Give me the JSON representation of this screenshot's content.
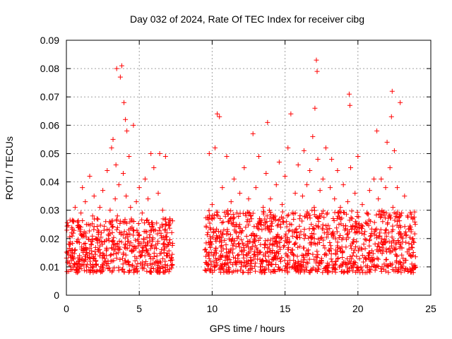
{
  "chart_data": {
    "type": "scatter",
    "title": "Day 032 of 2024, Rate Of TEC Index for receiver cibg",
    "xlabel": "GPS time / hours",
    "ylabel": "ROTI / TECUs",
    "xlim": [
      0,
      25
    ],
    "ylim": [
      0,
      0.09
    ],
    "xticks": [
      0,
      5,
      10,
      15,
      20,
      25
    ],
    "xtick_labels": [
      "0",
      "5",
      "10",
      "15",
      "20",
      "25"
    ],
    "yticks": [
      0,
      0.01,
      0.02,
      0.03,
      0.04,
      0.05,
      0.06,
      0.07,
      0.08,
      0.09
    ],
    "ytick_labels": [
      "0",
      "0.01",
      "0.02",
      "0.03",
      "0.04",
      "0.05",
      "0.06",
      "0.07",
      "0.08",
      "0.09"
    ],
    "grid": true,
    "marker": "+",
    "color": "#ff0000",
    "series": [
      {
        "name": "ROTI",
        "points": [
          [
            0.1,
            0.012
          ],
          [
            0.2,
            0.018
          ],
          [
            0.3,
            0.009
          ],
          [
            0.35,
            0.022
          ],
          [
            0.4,
            0.015
          ],
          [
            0.5,
            0.026
          ],
          [
            0.55,
            0.011
          ],
          [
            0.6,
            0.031
          ],
          [
            0.7,
            0.019
          ],
          [
            0.75,
            0.008
          ],
          [
            0.8,
            0.024
          ],
          [
            0.9,
            0.014
          ],
          [
            1.0,
            0.029
          ],
          [
            1.05,
            0.017
          ],
          [
            1.1,
            0.038
          ],
          [
            1.2,
            0.021
          ],
          [
            1.25,
            0.012
          ],
          [
            1.3,
            0.033
          ],
          [
            1.4,
            0.016
          ],
          [
            1.5,
            0.025
          ],
          [
            1.55,
            0.009
          ],
          [
            1.6,
            0.042
          ],
          [
            1.7,
            0.018
          ],
          [
            1.8,
            0.028
          ],
          [
            1.85,
            0.013
          ],
          [
            1.9,
            0.035
          ],
          [
            2.0,
            0.02
          ],
          [
            2.05,
            0.011
          ],
          [
            2.1,
            0.027
          ],
          [
            2.2,
            0.016
          ],
          [
            2.3,
            0.031
          ],
          [
            2.4,
            0.022
          ],
          [
            2.45,
            0.01
          ],
          [
            2.5,
            0.037
          ],
          [
            2.6,
            0.019
          ],
          [
            2.7,
            0.026
          ],
          [
            2.75,
            0.014
          ],
          [
            2.8,
            0.044
          ],
          [
            2.9,
            0.021
          ],
          [
            3.0,
            0.03
          ],
          [
            3.05,
            0.012
          ],
          [
            3.1,
            0.052
          ],
          [
            3.15,
            0.024
          ],
          [
            3.2,
            0.055
          ],
          [
            3.3,
            0.018
          ],
          [
            3.35,
            0.034
          ],
          [
            3.4,
            0.046
          ],
          [
            3.45,
            0.08
          ],
          [
            3.5,
            0.028
          ],
          [
            3.55,
            0.015
          ],
          [
            3.6,
            0.039
          ],
          [
            3.7,
            0.077
          ],
          [
            3.75,
            0.022
          ],
          [
            3.8,
            0.081
          ],
          [
            3.85,
            0.013
          ],
          [
            3.9,
            0.043
          ],
          [
            3.95,
            0.068
          ],
          [
            4.0,
            0.026
          ],
          [
            4.05,
            0.062
          ],
          [
            4.1,
            0.035
          ],
          [
            4.15,
            0.058
          ],
          [
            4.2,
            0.019
          ],
          [
            4.3,
            0.049
          ],
          [
            4.4,
            0.031
          ],
          [
            4.5,
            0.024
          ],
          [
            4.6,
            0.06
          ],
          [
            4.7,
            0.017
          ],
          [
            4.8,
            0.033
          ],
          [
            4.9,
            0.022
          ],
          [
            5.0,
            0.038
          ],
          [
            5.1,
            0.014
          ],
          [
            5.2,
            0.029
          ],
          [
            5.3,
            0.02
          ],
          [
            5.4,
            0.041
          ],
          [
            5.5,
            0.016
          ],
          [
            5.6,
            0.034
          ],
          [
            5.7,
            0.025
          ],
          [
            5.8,
            0.05
          ],
          [
            5.9,
            0.019
          ],
          [
            6.0,
            0.045
          ],
          [
            6.1,
            0.023
          ],
          [
            6.2,
            0.012
          ],
          [
            6.3,
            0.036
          ],
          [
            6.4,
            0.05
          ],
          [
            6.5,
            0.021
          ],
          [
            6.6,
            0.03
          ],
          [
            6.7,
            0.015
          ],
          [
            6.8,
            0.049
          ],
          [
            6.9,
            0.022
          ],
          [
            7.0,
            0.018
          ],
          [
            7.1,
            0.027
          ],
          [
            7.2,
            0.013
          ],
          [
            9.5,
            0.016
          ],
          [
            9.6,
            0.024
          ],
          [
            9.7,
            0.011
          ],
          [
            9.8,
            0.05
          ],
          [
            9.9,
            0.019
          ],
          [
            10.0,
            0.032
          ],
          [
            10.1,
            0.014
          ],
          [
            10.2,
            0.052
          ],
          [
            10.3,
            0.021
          ],
          [
            10.35,
            0.064
          ],
          [
            10.4,
            0.028
          ],
          [
            10.5,
            0.063
          ],
          [
            10.6,
            0.017
          ],
          [
            10.7,
            0.038
          ],
          [
            10.8,
            0.023
          ],
          [
            10.9,
            0.011
          ],
          [
            11.0,
            0.049
          ],
          [
            11.1,
            0.026
          ],
          [
            11.2,
            0.015
          ],
          [
            11.3,
            0.033
          ],
          [
            11.4,
            0.02
          ],
          [
            11.5,
            0.041
          ],
          [
            11.6,
            0.012
          ],
          [
            11.7,
            0.029
          ],
          [
            11.8,
            0.018
          ],
          [
            11.9,
            0.036
          ],
          [
            12.0,
            0.022
          ],
          [
            12.1,
            0.008
          ],
          [
            12.2,
            0.045
          ],
          [
            12.3,
            0.024
          ],
          [
            12.4,
            0.014
          ],
          [
            12.5,
            0.034
          ],
          [
            12.6,
            0.019
          ],
          [
            12.7,
            0.027
          ],
          [
            12.8,
            0.057
          ],
          [
            12.9,
            0.021
          ],
          [
            13.0,
            0.038
          ],
          [
            13.1,
            0.016
          ],
          [
            13.2,
            0.049
          ],
          [
            13.3,
            0.025
          ],
          [
            13.4,
            0.012
          ],
          [
            13.5,
            0.031
          ],
          [
            13.6,
            0.018
          ],
          [
            13.7,
            0.043
          ],
          [
            13.8,
            0.061
          ],
          [
            13.9,
            0.023
          ],
          [
            14.0,
            0.034
          ],
          [
            14.1,
            0.015
          ],
          [
            14.2,
            0.028
          ],
          [
            14.3,
            0.02
          ],
          [
            14.4,
            0.039
          ],
          [
            14.5,
            0.013
          ],
          [
            14.6,
            0.047
          ],
          [
            14.7,
            0.024
          ],
          [
            14.8,
            0.032
          ],
          [
            14.9,
            0.017
          ],
          [
            15.0,
            0.042
          ],
          [
            15.1,
            0.026
          ],
          [
            15.2,
            0.052
          ],
          [
            15.3,
            0.019
          ],
          [
            15.4,
            0.064
          ],
          [
            15.5,
            0.029
          ],
          [
            15.6,
            0.014
          ],
          [
            15.7,
            0.036
          ],
          [
            15.8,
            0.022
          ],
          [
            15.9,
            0.046
          ],
          [
            16.0,
            0.027
          ],
          [
            16.1,
            0.012
          ],
          [
            16.2,
            0.035
          ],
          [
            16.3,
            0.051
          ],
          [
            16.4,
            0.021
          ],
          [
            16.5,
            0.039
          ],
          [
            16.6,
            0.016
          ],
          [
            16.7,
            0.044
          ],
          [
            16.8,
            0.025
          ],
          [
            16.9,
            0.056
          ],
          [
            17.0,
            0.031
          ],
          [
            17.05,
            0.066
          ],
          [
            17.1,
            0.018
          ],
          [
            17.15,
            0.083
          ],
          [
            17.2,
            0.079
          ],
          [
            17.25,
            0.048
          ],
          [
            17.3,
            0.024
          ],
          [
            17.4,
            0.037
          ],
          [
            17.5,
            0.013
          ],
          [
            17.6,
            0.041
          ],
          [
            17.7,
            0.022
          ],
          [
            17.8,
            0.052
          ],
          [
            17.9,
            0.029
          ],
          [
            18.0,
            0.016
          ],
          [
            18.1,
            0.038
          ],
          [
            18.2,
            0.048
          ],
          [
            18.3,
            0.021
          ],
          [
            18.4,
            0.034
          ],
          [
            18.5,
            0.012
          ],
          [
            18.6,
            0.044
          ],
          [
            18.7,
            0.025
          ],
          [
            18.8,
            0.031
          ],
          [
            18.9,
            0.017
          ],
          [
            19.0,
            0.039
          ],
          [
            19.1,
            0.023
          ],
          [
            19.2,
            0.011
          ],
          [
            19.3,
            0.033
          ],
          [
            19.4,
            0.071
          ],
          [
            19.45,
            0.067
          ],
          [
            19.5,
            0.045
          ],
          [
            19.6,
            0.027
          ],
          [
            19.7,
            0.015
          ],
          [
            19.8,
            0.036
          ],
          [
            19.9,
            0.019
          ],
          [
            20.0,
            0.049
          ],
          [
            20.1,
            0.024
          ],
          [
            20.2,
            0.01
          ],
          [
            20.3,
            0.032
          ],
          [
            20.4,
            0.018
          ],
          [
            20.5,
            0.008
          ],
          [
            20.6,
            0.029
          ],
          [
            20.7,
            0.014
          ],
          [
            20.8,
            0.037
          ],
          [
            20.9,
            0.021
          ],
          [
            21.0,
            0.012
          ],
          [
            21.1,
            0.041
          ],
          [
            21.2,
            0.023
          ],
          [
            21.3,
            0.058
          ],
          [
            21.4,
            0.034
          ],
          [
            21.5,
            0.016
          ],
          [
            21.6,
            0.041
          ],
          [
            21.7,
            0.026
          ],
          [
            21.8,
            0.011
          ],
          [
            21.9,
            0.038
          ],
          [
            22.0,
            0.054
          ],
          [
            22.1,
            0.022
          ],
          [
            22.2,
            0.045
          ],
          [
            22.3,
            0.063
          ],
          [
            22.35,
            0.072
          ],
          [
            22.4,
            0.031
          ],
          [
            22.5,
            0.051
          ],
          [
            22.6,
            0.018
          ],
          [
            22.7,
            0.038
          ],
          [
            22.8,
            0.024
          ],
          [
            22.9,
            0.068
          ],
          [
            23.0,
            0.029
          ],
          [
            23.1,
            0.013
          ],
          [
            23.2,
            0.035
          ],
          [
            23.3,
            0.021
          ],
          [
            23.4,
            0.028
          ],
          [
            23.5,
            0.016
          ],
          [
            23.6,
            0.024
          ],
          [
            23.7,
            0.011
          ],
          [
            23.8,
            0.019
          ]
        ]
      }
    ],
    "density_bands": [
      {
        "range": [
          0.0,
          7.3
        ],
        "low": 0.008,
        "high": 0.027,
        "count": 520
      },
      {
        "range": [
          9.5,
          24.0
        ],
        "low": 0.008,
        "high": 0.03,
        "count": 1100
      }
    ]
  }
}
